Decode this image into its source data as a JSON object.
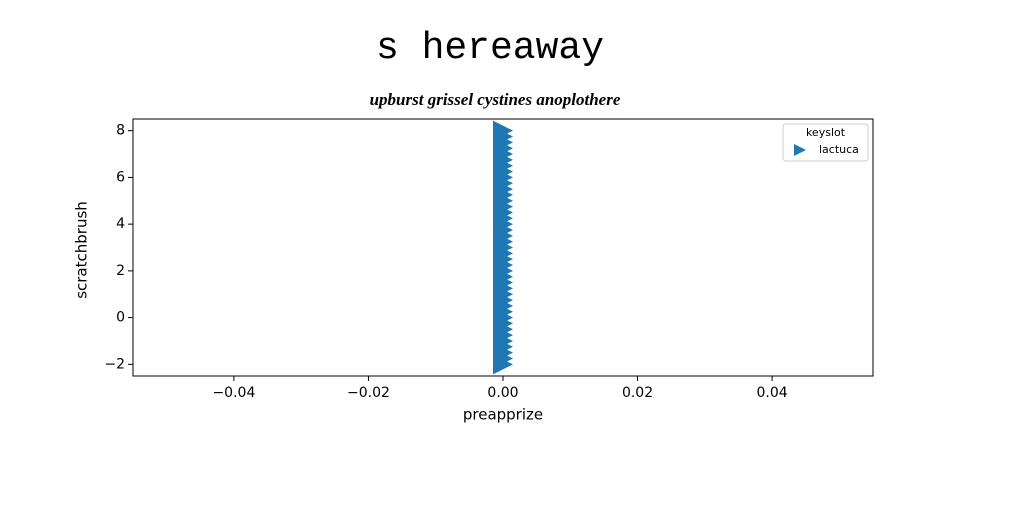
{
  "chart_data": {
    "type": "scatter",
    "title": "s hereaway",
    "subtitle": "upburst grissel cystines anoplothere",
    "x_label": "preapprize",
    "y_label": "scratchbrush",
    "legend_title": "keyslot",
    "legend_position": "upper right",
    "series": [
      {
        "name": "lactuca",
        "color": "#1f77b4",
        "marker": "triangle-right",
        "x": [
          0,
          0,
          0,
          0,
          0,
          0,
          0,
          0,
          0,
          0,
          0,
          0,
          0,
          0,
          0,
          0,
          0,
          0,
          0,
          0,
          0,
          0,
          0,
          0,
          0,
          0,
          0,
          0,
          0,
          0,
          0,
          0,
          0,
          0,
          0,
          0,
          0,
          0,
          0,
          0,
          0
        ],
        "values": [
          -2,
          -1.75,
          -1.5,
          -1.25,
          -1,
          -0.75,
          -0.5,
          -0.25,
          0,
          0.25,
          0.5,
          0.75,
          1,
          1.25,
          1.5,
          1.75,
          2,
          2.25,
          2.5,
          2.75,
          3,
          3.25,
          3.5,
          3.75,
          4,
          4.25,
          4.5,
          4.75,
          5,
          5.25,
          5.5,
          5.75,
          6,
          6.25,
          6.5,
          6.75,
          7,
          7.25,
          7.5,
          7.75,
          8
        ]
      }
    ],
    "xlim": [
      -0.055,
      0.055
    ],
    "xticks": [
      {
        "value": -0.04,
        "label": "−0.04"
      },
      {
        "value": -0.02,
        "label": "−0.02"
      },
      {
        "value": 0,
        "label": "0.00"
      },
      {
        "value": 0.02,
        "label": "0.02"
      },
      {
        "value": 0.04,
        "label": "0.04"
      }
    ],
    "ylim": [
      -2.5,
      8.5
    ],
    "yticks": [
      {
        "value": -2,
        "label": "−2"
      },
      0,
      2,
      4,
      6,
      8
    ],
    "grid": false
  }
}
